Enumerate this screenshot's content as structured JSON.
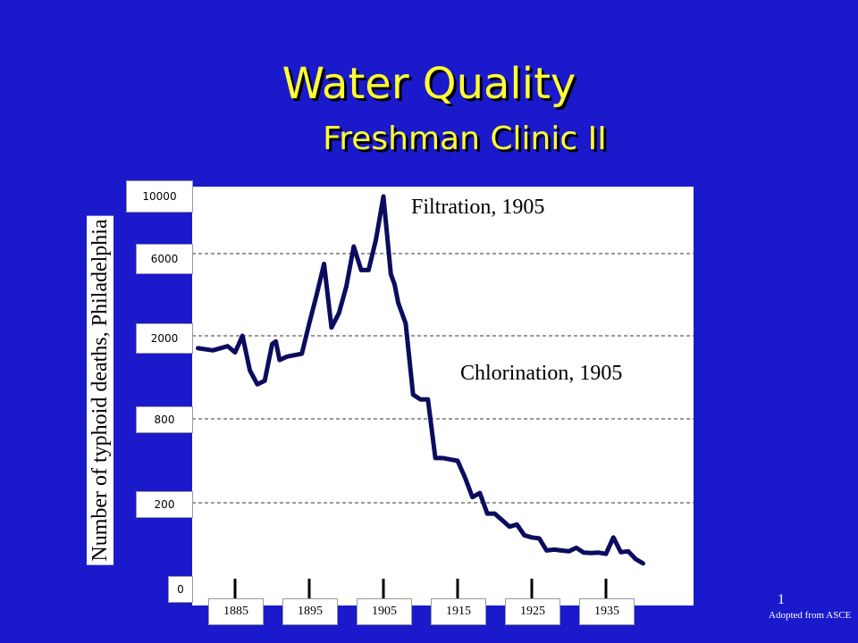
{
  "slide": {
    "title": "Water Quality",
    "subtitle": "Freshman Clinic II",
    "page_number": "1",
    "credit": "Adopted from ASCE",
    "colors": {
      "background": "#1a1acc",
      "title": "#ffff33",
      "line": "#0c0c5e"
    }
  },
  "chart_data": {
    "type": "line",
    "title": "",
    "xlabel": "",
    "ylabel": "Number of typhoid deaths, Philadelphia",
    "x_ticks": [
      "1885",
      "1895",
      "1905",
      "1915",
      "1925",
      "1935"
    ],
    "y_ticks": [
      "0",
      "200",
      "800",
      "2000",
      "6000",
      "10000"
    ],
    "y_scale": "categorical-ordinal (ticks at 0, 200, 800, 2000, 6000, 10000)",
    "grid": "horizontal dashed",
    "annotations": [
      "Filtration, 1905",
      "Chlorination, 1905"
    ],
    "series": [
      {
        "x": [
          1880,
          1882,
          1884,
          1885,
          1886,
          1887,
          1888,
          1889,
          1890,
          1890.5,
          1891,
          1892,
          1893,
          1894,
          1895,
          1896,
          1897,
          1898,
          1899,
          1900,
          1901,
          1902,
          1903,
          1904,
          1905,
          1906,
          1906.5,
          1907,
          1908,
          1909,
          1910,
          1911,
          1912,
          1913,
          1914,
          1915,
          1916,
          1917,
          1918,
          1919,
          1920,
          1921,
          1922,
          1923,
          1924,
          1925,
          1926,
          1927,
          1928,
          1929,
          1930,
          1931,
          1932,
          1933,
          1934,
          1935,
          1936,
          1937,
          1938,
          1939,
          1940
        ],
        "y": [
          1820,
          1790,
          1850,
          1760,
          2000,
          1500,
          1300,
          1350,
          1880,
          1920,
          1650,
          1700,
          1720,
          1740,
          2600,
          4000,
          5500,
          2400,
          3100,
          4400,
          6500,
          5200,
          5200,
          7000,
          10000,
          5000,
          4500,
          3600,
          2600,
          1150,
          1080,
          1080,
          520,
          520,
          510,
          500,
          380,
          240,
          270,
          175,
          175,
          160,
          145,
          150,
          125,
          120,
          118,
          90,
          92,
          90,
          88,
          96,
          85,
          84,
          85,
          82,
          120,
          86,
          88,
          70,
          60
        ]
      }
    ]
  }
}
